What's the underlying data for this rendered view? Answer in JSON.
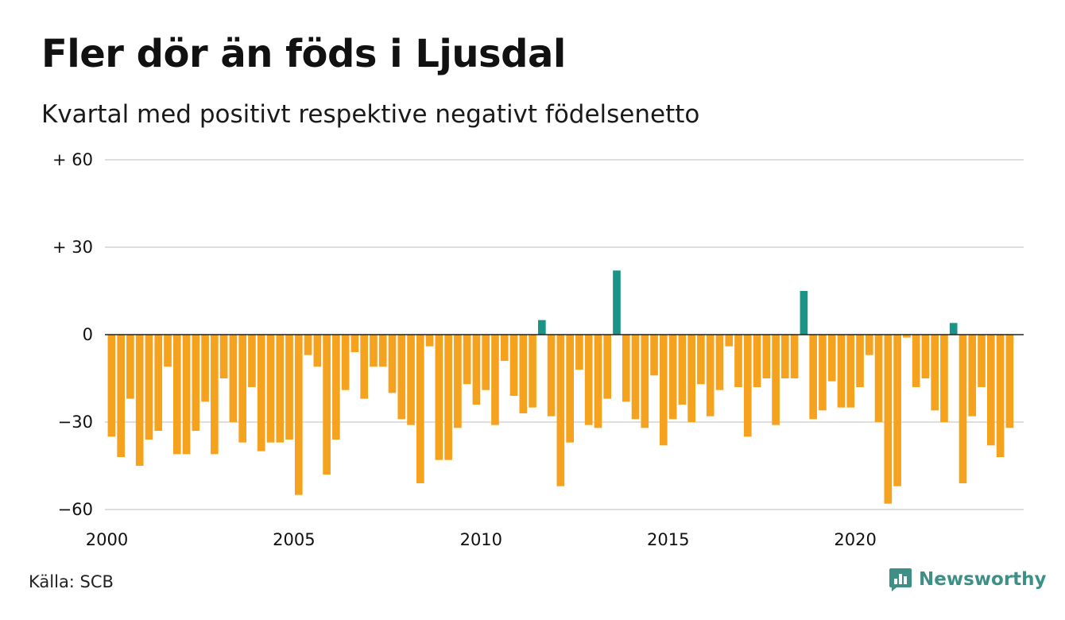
{
  "header": {
    "title": "Fler dör än föds i Ljusdal",
    "subtitle": "Kvartal med positivt respektive negativt födelsenetto"
  },
  "footer": {
    "source": "Källa: SCB",
    "brand": "Newsworthy",
    "brand_icon": "newsworthy-logo-icon"
  },
  "colors": {
    "positive": "#1a9486",
    "negative": "#f5a21e",
    "grid": "#dedede",
    "zero_line": "#222222",
    "brand": "#3e8f86"
  },
  "chart_data": {
    "type": "bar",
    "title": "Fler dör än föds i Ljusdal",
    "subtitle": "Kvartal med positivt respektive negativt födelsenetto",
    "xlabel": "",
    "ylabel": "",
    "ylim": [
      -60,
      60
    ],
    "xlim": [
      2000,
      2024.5
    ],
    "yticks": [
      60,
      30,
      0,
      -30,
      -60
    ],
    "ytick_labels": [
      "+ 60",
      "+ 30",
      "0",
      "−30",
      "−60"
    ],
    "xticks": [
      2000,
      2005,
      2010,
      2015,
      2020
    ],
    "xtick_labels": [
      "2000",
      "2005",
      "2010",
      "2015",
      "2020"
    ],
    "grid": true,
    "start_year": 2000,
    "periods_per_year": 4,
    "values": [
      -35,
      -42,
      -22,
      -45,
      -36,
      -33,
      -11,
      -41,
      -41,
      -33,
      -23,
      -41,
      -15,
      -30,
      -37,
      -18,
      -40,
      -37,
      -37,
      -36,
      -55,
      -7,
      -11,
      -48,
      -36,
      -19,
      -6,
      -22,
      -11,
      -11,
      -20,
      -29,
      -31,
      -51,
      -4,
      -43,
      -43,
      -32,
      -17,
      -24,
      -19,
      -31,
      -9,
      -21,
      -27,
      -25,
      5,
      -28,
      -52,
      -37,
      -12,
      -31,
      -32,
      -22,
      22,
      -23,
      -29,
      -32,
      -14,
      -38,
      -29,
      -24,
      -30,
      -17,
      -28,
      -19,
      -4,
      -18,
      -35,
      -18,
      -15,
      -31,
      -15,
      -15,
      15,
      -29,
      -26,
      -16,
      -25,
      -25,
      -18,
      -7,
      -30,
      -58,
      -52,
      -1,
      -18,
      -15,
      -26,
      -30,
      4,
      -51,
      -28,
      -18,
      -38,
      -42,
      -32
    ]
  }
}
